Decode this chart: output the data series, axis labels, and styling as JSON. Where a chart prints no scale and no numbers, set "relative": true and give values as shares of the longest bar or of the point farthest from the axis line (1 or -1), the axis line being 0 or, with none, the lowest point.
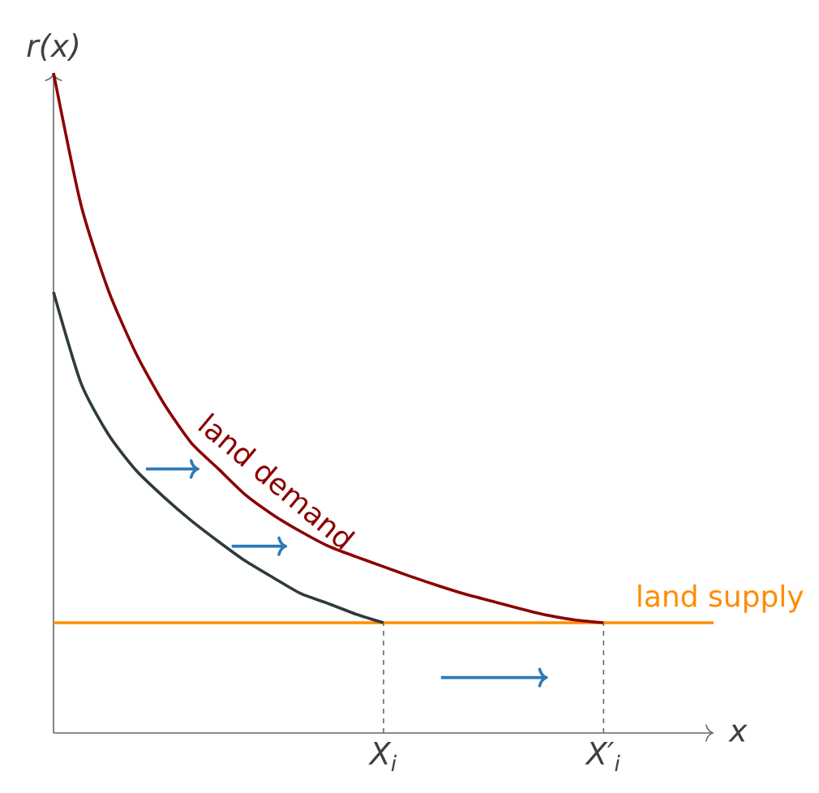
{
  "chart_data": {
    "type": "line",
    "relative": true,
    "xlabel": "x",
    "ylabel": "r(x)",
    "marker": "none",
    "line_style": "solid",
    "categories": [
      null,
      null,
      null,
      null,
      null,
      null,
      null,
      null,
      null,
      null,
      null,
      null,
      "X$_{i}$",
      null,
      null,
      null,
      null,
      null,
      null,
      null,
      "X′$_{i}$",
      null,
      null,
      null,
      null
    ],
    "series": [
      {
        "color": "#2e3b3e",
        "values": [
          0.668,
          0.53,
          0.452,
          0.398,
          0.358,
          0.322,
          0.29,
          0.26,
          0.235,
          0.211,
          0.196,
          0.18,
          0.167,
          null,
          null,
          null,
          null,
          null,
          null,
          null,
          null,
          null,
          null,
          null,
          null
        ]
      },
      {
        "name": "land demand",
        "color": "#8b0000",
        "values": [
          1.0,
          0.8,
          0.67,
          0.575,
          0.5,
          0.44,
          0.4,
          0.36,
          0.33,
          0.305,
          0.283,
          0.267,
          0.252,
          0.237,
          0.223,
          0.21,
          0.199,
          0.188,
          0.178,
          0.171,
          0.167,
          null,
          null,
          null,
          null
        ]
      },
      {
        "name": "land supply",
        "color": "#ff8c00",
        "values": [
          0.167,
          0.167,
          0.167,
          0.167,
          0.167,
          0.167,
          0.167,
          0.167,
          0.167,
          0.167,
          0.167,
          0.167,
          0.167,
          0.167,
          0.167,
          0.167,
          0.167,
          0.167,
          0.167,
          0.167,
          0.167,
          0.167,
          0.167,
          0.167,
          0.167
        ]
      }
    ],
    "ref_lines": [
      {
        "axis": "x",
        "value": "X$_{i}$",
        "color": "#666666",
        "line_style": "dashed"
      },
      {
        "axis": "x",
        "value": "X′$_{i}$",
        "color": "#666666",
        "line_style": "dashed"
      }
    ]
  }
}
